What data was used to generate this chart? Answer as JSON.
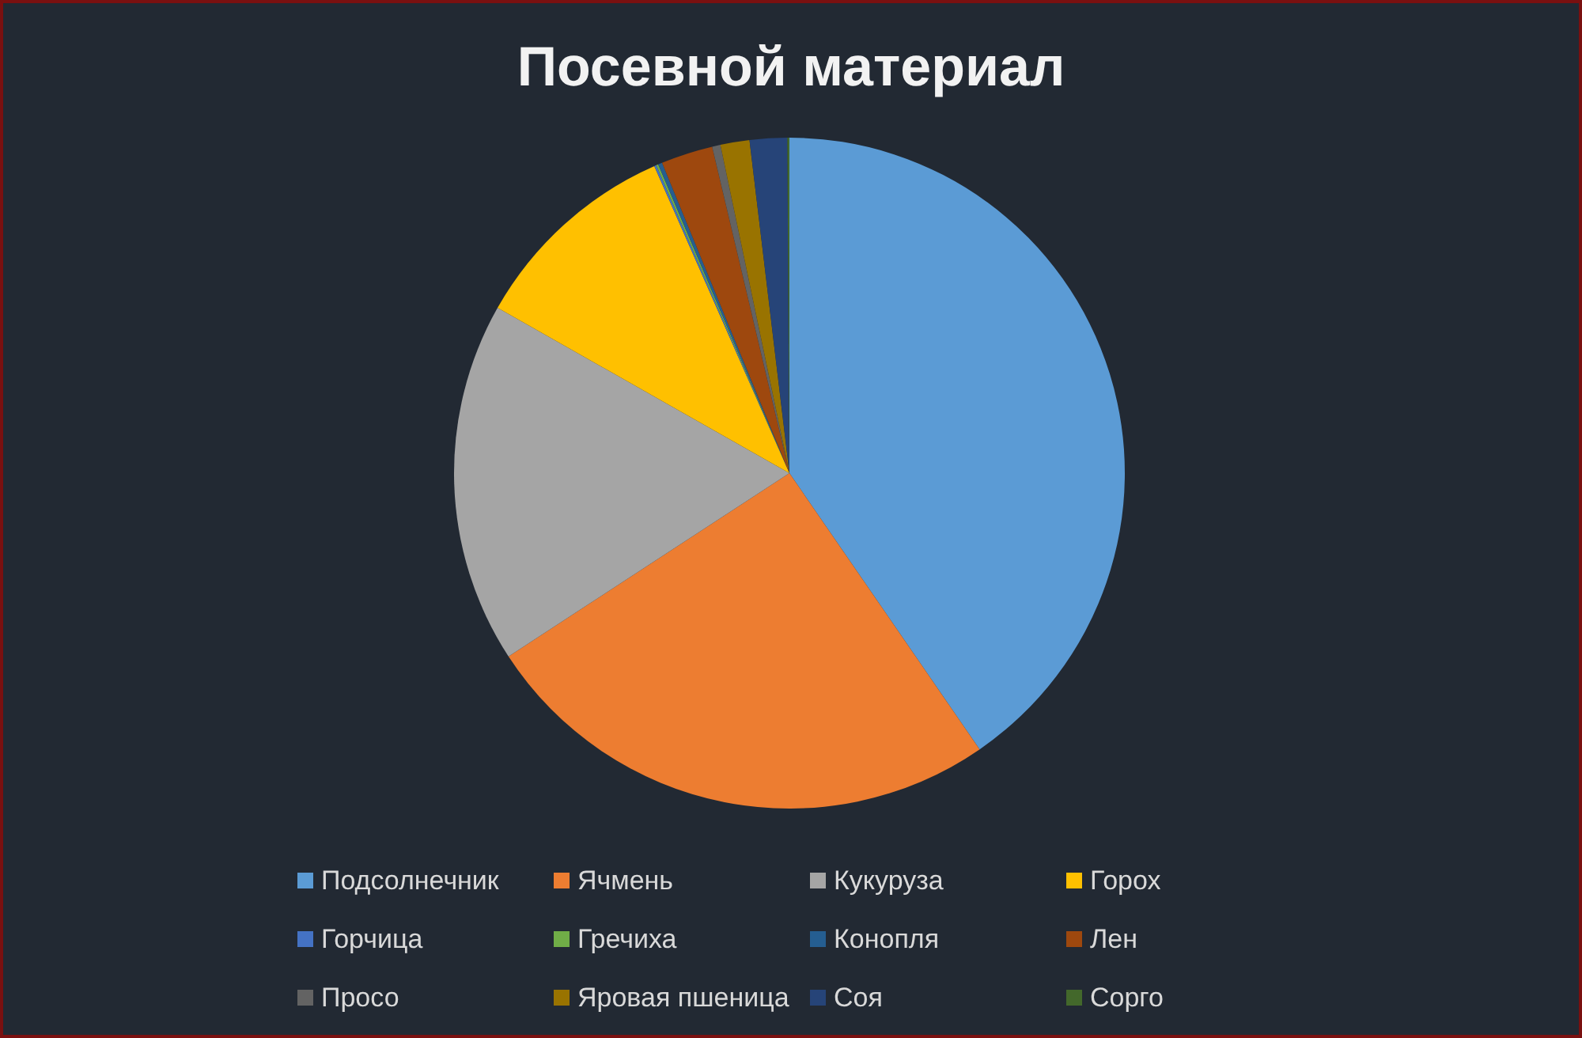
{
  "chart_data": {
    "type": "pie",
    "title": "Посевной материал",
    "categories": [
      "Подсолнечник",
      "Ячмень",
      "Кукуруза",
      "Горох",
      "Горчица",
      "Гречиха",
      "Конопля",
      "Лен",
      "Просо",
      "Яровая пшеница",
      "Соя",
      "Сорго"
    ],
    "values": [
      40.4,
      25.4,
      17.4,
      10.2,
      0.1,
      0.1,
      0.2,
      2.5,
      0.4,
      1.4,
      1.8,
      0.1
    ],
    "colors": [
      "#5b9bd5",
      "#ed7d31",
      "#a5a5a5",
      "#ffc000",
      "#4472c4",
      "#70ad47",
      "#255e91",
      "#9e480e",
      "#636363",
      "#997300",
      "#264478",
      "#43682b"
    ],
    "legend": "bottom"
  }
}
